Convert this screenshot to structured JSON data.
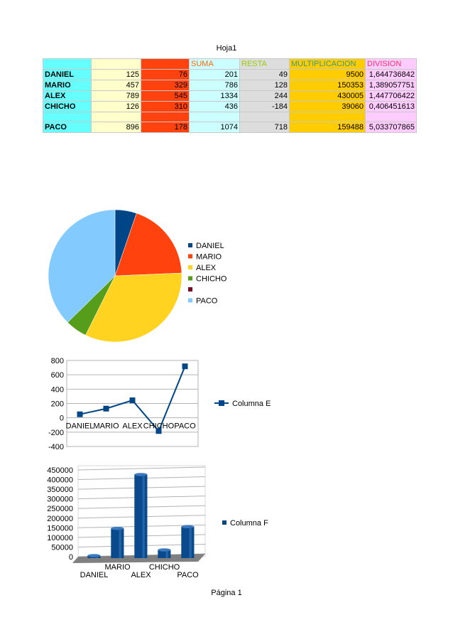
{
  "page": {
    "title": "Hoja1",
    "footer": "Página 1"
  },
  "sheet": {
    "headers": [
      "",
      "",
      "",
      "SUMA",
      "RESTA",
      "MULTIPLICACION",
      "DIVISION"
    ],
    "header_colors": [
      "#000000",
      "#000000",
      "#000000",
      "#ff6600",
      "#99cc00",
      "#339999",
      "#ff3366"
    ],
    "rows": [
      [
        "DANIEL",
        "125",
        "76",
        "201",
        "49",
        "9500",
        "1,644736842"
      ],
      [
        "MARIO",
        "457",
        "329",
        "786",
        "128",
        "150353",
        "1,389057751"
      ],
      [
        "ALEX",
        "789",
        "545",
        "1334",
        "244",
        "430005",
        "1,447706422"
      ],
      [
        "CHICHO",
        "126",
        "310",
        "436",
        "-184",
        "39060",
        "0,406451613"
      ],
      [
        "",
        "",
        "",
        "",
        "",
        "",
        ""
      ],
      [
        "PACO",
        "896",
        "178",
        "1074",
        "718",
        "159488",
        "5,033707865"
      ]
    ]
  },
  "chart_data": [
    {
      "type": "pie",
      "title": "",
      "categories": [
        "DANIEL",
        "MARIO",
        "ALEX",
        "CHICHO",
        "",
        "PACO"
      ],
      "values": [
        125,
        457,
        789,
        126,
        0,
        896
      ],
      "colors": [
        "#004586",
        "#ff420e",
        "#ffd320",
        "#579d1c",
        "#7e0021",
        "#83caff"
      ],
      "legend": "right"
    },
    {
      "type": "line",
      "title": "",
      "categories": [
        "DANIEL",
        "MARIO",
        "ALEX",
        "CHICHO",
        "PACO"
      ],
      "series": [
        {
          "name": "Columna E",
          "values": [
            49,
            128,
            244,
            -184,
            718
          ],
          "color": "#004586"
        }
      ],
      "ylim": [
        -400,
        800
      ],
      "yticks": [
        "800",
        "600",
        "400",
        "200",
        "0",
        "-200",
        "-400"
      ],
      "grid": true,
      "legend": "right"
    },
    {
      "type": "bar",
      "title": "",
      "categories": [
        "DANIEL",
        "MARIO",
        "ALEX",
        "CHICHO",
        "PACO"
      ],
      "series": [
        {
          "name": "Columna F",
          "values": [
            9500,
            150353,
            430005,
            39060,
            159488
          ],
          "color": "#004586"
        }
      ],
      "ylim": [
        0,
        450000
      ],
      "yticks": [
        "450000",
        "400000",
        "350000",
        "300000",
        "250000",
        "200000",
        "150000",
        "100000",
        "50000",
        "0"
      ],
      "grid": true,
      "legend": "right"
    }
  ]
}
